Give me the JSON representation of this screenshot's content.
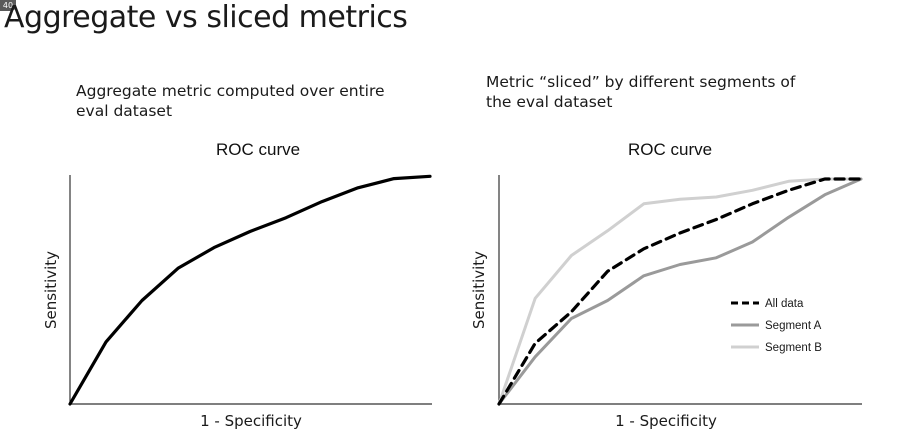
{
  "slide": {
    "badge": "40",
    "title": "Aggregate vs sliced metrics"
  },
  "left_panel": {
    "caption": "Aggregate metric computed over entire eval dataset"
  },
  "right_panel": {
    "caption": "Metric “sliced” by different segments of the eval dataset"
  },
  "colors": {
    "all_data": "#000000",
    "segment_a": "#9a9a9a",
    "segment_b": "#d0d0d0",
    "axis": "#333333"
  },
  "chart_data": [
    {
      "type": "line",
      "title": "ROC curve",
      "xlabel": "1 - Specificity",
      "ylabel": "Sensitivity",
      "xlim": [
        0,
        1
      ],
      "ylim": [
        0,
        1
      ],
      "grid": false,
      "series": [
        {
          "x": [
            0,
            0.1,
            0.2,
            0.3,
            0.4,
            0.5,
            0.6,
            0.7,
            0.8,
            0.9,
            1.0
          ],
          "y": [
            0,
            0.27,
            0.45,
            0.59,
            0.68,
            0.75,
            0.81,
            0.88,
            0.94,
            0.98,
            0.99
          ]
        }
      ]
    },
    {
      "type": "line",
      "title": "ROC curve",
      "xlabel": "1 - Specificity",
      "ylabel": "Sensitivity",
      "xlim": [
        0,
        1
      ],
      "ylim": [
        0,
        1
      ],
      "grid": false,
      "legend": "center-right",
      "series": [
        {
          "name": "All data",
          "style": "dashed",
          "x": [
            0,
            0.1,
            0.2,
            0.3,
            0.4,
            0.5,
            0.6,
            0.7,
            0.8,
            0.9,
            1.0
          ],
          "y": [
            0,
            0.27,
            0.41,
            0.59,
            0.69,
            0.76,
            0.82,
            0.89,
            0.95,
            1.0,
            1.0
          ]
        },
        {
          "name": "Segment A",
          "style": "solid",
          "x": [
            0,
            0.1,
            0.2,
            0.3,
            0.4,
            0.5,
            0.6,
            0.7,
            0.8,
            0.9,
            1.0
          ],
          "y": [
            0,
            0.21,
            0.38,
            0.46,
            0.57,
            0.62,
            0.65,
            0.72,
            0.83,
            0.93,
            1.0
          ]
        },
        {
          "name": "Segment B",
          "style": "solid",
          "x": [
            0,
            0.1,
            0.2,
            0.3,
            0.4,
            0.5,
            0.6,
            0.7,
            0.8,
            0.9,
            1.0
          ],
          "y": [
            0,
            0.47,
            0.66,
            0.77,
            0.89,
            0.91,
            0.92,
            0.95,
            0.99,
            1.0,
            1.0
          ]
        }
      ]
    }
  ]
}
